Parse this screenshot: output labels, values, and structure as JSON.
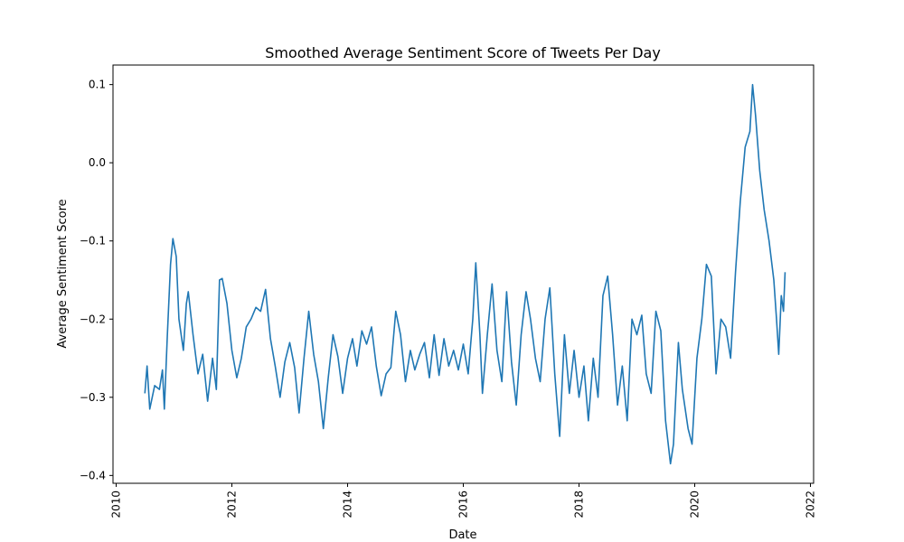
{
  "chart_data": {
    "type": "line",
    "title": "Smoothed Average Sentiment Score of Tweets Per Day",
    "xlabel": "Date",
    "ylabel": "Average Sentiment Score",
    "xlim": [
      "2010-01-01",
      "2022-01-01"
    ],
    "ylim": [
      -0.41,
      0.125
    ],
    "x_ticks": [
      "2010",
      "2012",
      "2014",
      "2016",
      "2018",
      "2020",
      "2022"
    ],
    "y_ticks": [
      {
        "value": 0.1,
        "label": "0.1"
      },
      {
        "value": 0.0,
        "label": "0.0"
      },
      {
        "value": -0.1,
        "label": "−0.1"
      },
      {
        "value": -0.2,
        "label": "−0.2"
      },
      {
        "value": -0.3,
        "label": "−0.3"
      },
      {
        "value": -0.4,
        "label": "−0.4"
      }
    ],
    "grid": false,
    "legend": "none",
    "series": [
      {
        "color": "#1f77b4",
        "points": [
          [
            "2010-07-01",
            -0.295
          ],
          [
            "2010-07-15",
            -0.26
          ],
          [
            "2010-08-01",
            -0.315
          ],
          [
            "2010-09-01",
            -0.285
          ],
          [
            "2010-10-01",
            -0.29
          ],
          [
            "2010-10-20",
            -0.265
          ],
          [
            "2010-11-01",
            -0.315
          ],
          [
            "2010-11-20",
            -0.22
          ],
          [
            "2010-12-10",
            -0.13
          ],
          [
            "2010-12-25",
            -0.097
          ],
          [
            "2011-01-15",
            -0.12
          ],
          [
            "2011-02-01",
            -0.2
          ],
          [
            "2011-03-01",
            -0.24
          ],
          [
            "2011-03-20",
            -0.18
          ],
          [
            "2011-04-01",
            -0.165
          ],
          [
            "2011-05-01",
            -0.22
          ],
          [
            "2011-06-01",
            -0.27
          ],
          [
            "2011-07-01",
            -0.245
          ],
          [
            "2011-08-01",
            -0.305
          ],
          [
            "2011-09-01",
            -0.25
          ],
          [
            "2011-09-25",
            -0.29
          ],
          [
            "2011-10-15",
            -0.15
          ],
          [
            "2011-11-01",
            -0.148
          ],
          [
            "2011-12-01",
            -0.18
          ],
          [
            "2012-01-01",
            -0.24
          ],
          [
            "2012-02-01",
            -0.275
          ],
          [
            "2012-03-01",
            -0.25
          ],
          [
            "2012-04-01",
            -0.21
          ],
          [
            "2012-05-01",
            -0.2
          ],
          [
            "2012-06-01",
            -0.185
          ],
          [
            "2012-07-01",
            -0.19
          ],
          [
            "2012-08-01",
            -0.162
          ],
          [
            "2012-09-01",
            -0.225
          ],
          [
            "2012-10-01",
            -0.26
          ],
          [
            "2012-11-01",
            -0.3
          ],
          [
            "2012-12-01",
            -0.255
          ],
          [
            "2013-01-01",
            -0.23
          ],
          [
            "2013-02-01",
            -0.262
          ],
          [
            "2013-03-01",
            -0.32
          ],
          [
            "2013-04-01",
            -0.25
          ],
          [
            "2013-05-01",
            -0.19
          ],
          [
            "2013-06-01",
            -0.245
          ],
          [
            "2013-07-01",
            -0.28
          ],
          [
            "2013-08-01",
            -0.34
          ],
          [
            "2013-09-01",
            -0.275
          ],
          [
            "2013-10-01",
            -0.22
          ],
          [
            "2013-11-01",
            -0.248
          ],
          [
            "2013-12-01",
            -0.295
          ],
          [
            "2014-01-01",
            -0.25
          ],
          [
            "2014-02-01",
            -0.225
          ],
          [
            "2014-03-01",
            -0.26
          ],
          [
            "2014-04-01",
            -0.215
          ],
          [
            "2014-05-01",
            -0.232
          ],
          [
            "2014-06-01",
            -0.21
          ],
          [
            "2014-07-01",
            -0.26
          ],
          [
            "2014-08-01",
            -0.298
          ],
          [
            "2014-09-01",
            -0.27
          ],
          [
            "2014-10-01",
            -0.262
          ],
          [
            "2014-11-01",
            -0.19
          ],
          [
            "2014-12-01",
            -0.22
          ],
          [
            "2015-01-01",
            -0.28
          ],
          [
            "2015-02-01",
            -0.24
          ],
          [
            "2015-03-01",
            -0.265
          ],
          [
            "2015-04-01",
            -0.245
          ],
          [
            "2015-05-01",
            -0.23
          ],
          [
            "2015-06-01",
            -0.275
          ],
          [
            "2015-07-01",
            -0.22
          ],
          [
            "2015-08-01",
            -0.272
          ],
          [
            "2015-09-01",
            -0.225
          ],
          [
            "2015-10-01",
            -0.26
          ],
          [
            "2015-11-01",
            -0.24
          ],
          [
            "2015-12-01",
            -0.265
          ],
          [
            "2016-01-01",
            -0.232
          ],
          [
            "2016-02-01",
            -0.27
          ],
          [
            "2016-03-01",
            -0.2
          ],
          [
            "2016-03-20",
            -0.128
          ],
          [
            "2016-04-15",
            -0.22
          ],
          [
            "2016-05-01",
            -0.295
          ],
          [
            "2016-06-01",
            -0.22
          ],
          [
            "2016-07-01",
            -0.155
          ],
          [
            "2016-08-01",
            -0.24
          ],
          [
            "2016-09-01",
            -0.28
          ],
          [
            "2016-10-01",
            -0.165
          ],
          [
            "2016-11-01",
            -0.255
          ],
          [
            "2016-12-01",
            -0.31
          ],
          [
            "2017-01-01",
            -0.22
          ],
          [
            "2017-02-01",
            -0.165
          ],
          [
            "2017-03-01",
            -0.2
          ],
          [
            "2017-04-01",
            -0.25
          ],
          [
            "2017-05-01",
            -0.28
          ],
          [
            "2017-06-01",
            -0.2
          ],
          [
            "2017-07-01",
            -0.16
          ],
          [
            "2017-08-01",
            -0.27
          ],
          [
            "2017-09-01",
            -0.35
          ],
          [
            "2017-10-01",
            -0.22
          ],
          [
            "2017-11-01",
            -0.295
          ],
          [
            "2017-12-01",
            -0.24
          ],
          [
            "2018-01-01",
            -0.3
          ],
          [
            "2018-02-01",
            -0.26
          ],
          [
            "2018-03-01",
            -0.33
          ],
          [
            "2018-04-01",
            -0.25
          ],
          [
            "2018-05-01",
            -0.3
          ],
          [
            "2018-06-01",
            -0.17
          ],
          [
            "2018-07-01",
            -0.145
          ],
          [
            "2018-08-01",
            -0.22
          ],
          [
            "2018-09-01",
            -0.31
          ],
          [
            "2018-10-01",
            -0.26
          ],
          [
            "2018-11-01",
            -0.33
          ],
          [
            "2018-12-01",
            -0.2
          ],
          [
            "2019-01-01",
            -0.22
          ],
          [
            "2019-02-01",
            -0.195
          ],
          [
            "2019-03-01",
            -0.27
          ],
          [
            "2019-04-01",
            -0.295
          ],
          [
            "2019-05-01",
            -0.19
          ],
          [
            "2019-06-01",
            -0.215
          ],
          [
            "2019-07-01",
            -0.33
          ],
          [
            "2019-08-01",
            -0.385
          ],
          [
            "2019-08-20",
            -0.36
          ],
          [
            "2019-09-20",
            -0.23
          ],
          [
            "2019-10-15",
            -0.29
          ],
          [
            "2019-11-20",
            -0.34
          ],
          [
            "2019-12-15",
            -0.36
          ],
          [
            "2020-01-15",
            -0.25
          ],
          [
            "2020-02-15",
            -0.2
          ],
          [
            "2020-03-15",
            -0.13
          ],
          [
            "2020-04-15",
            -0.145
          ],
          [
            "2020-05-15",
            -0.27
          ],
          [
            "2020-06-15",
            -0.2
          ],
          [
            "2020-07-15",
            -0.21
          ],
          [
            "2020-08-15",
            -0.25
          ],
          [
            "2020-09-15",
            -0.14
          ],
          [
            "2020-10-15",
            -0.05
          ],
          [
            "2020-11-15",
            0.02
          ],
          [
            "2020-12-15",
            0.04
          ],
          [
            "2021-01-01",
            0.1
          ],
          [
            "2021-01-20",
            0.06
          ],
          [
            "2021-02-15",
            -0.01
          ],
          [
            "2021-03-15",
            -0.06
          ],
          [
            "2021-04-15",
            -0.1
          ],
          [
            "2021-05-15",
            -0.15
          ],
          [
            "2021-06-01",
            -0.2
          ],
          [
            "2021-06-15",
            -0.245
          ],
          [
            "2021-07-01",
            -0.17
          ],
          [
            "2021-07-15",
            -0.19
          ],
          [
            "2021-07-25",
            -0.14
          ]
        ]
      }
    ]
  }
}
